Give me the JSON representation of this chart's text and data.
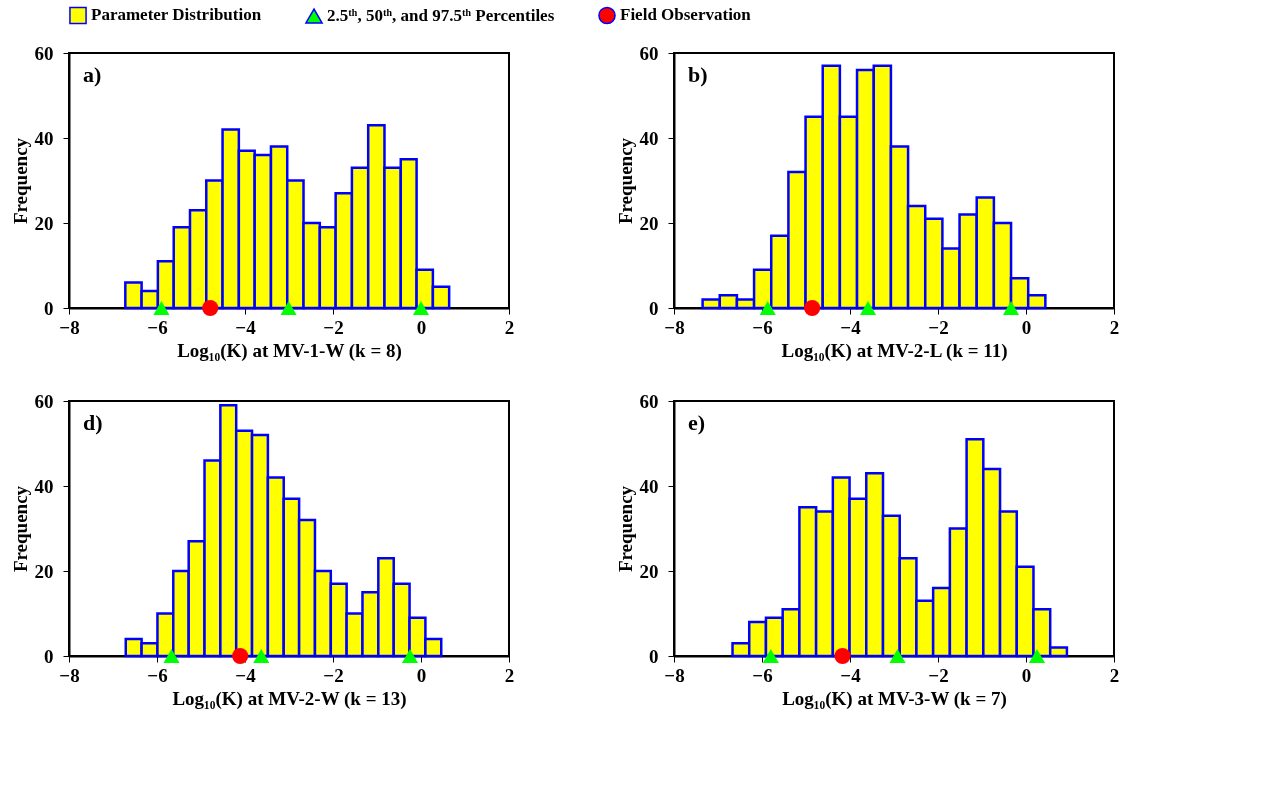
{
  "chart_data": [
    {
      "type": "histogram",
      "xlabel": "Log₁₀(K) at MV-1-W (k = 8)",
      "ylabel": "Frequency",
      "annotations": [
        "a)"
      ],
      "xlim": [
        -8,
        2
      ],
      "xticks": [
        -8,
        -6,
        -4,
        -2,
        0,
        2
      ],
      "ylim": [
        0,
        60
      ],
      "yticks": [
        0,
        20,
        40,
        60
      ],
      "legend": "top",
      "series": [
        {
          "name": "Parameter Distribution",
          "color": "#ffff00",
          "bins": [
            -6.72,
            -6.35,
            -5.98,
            -5.62,
            -5.25,
            -4.88,
            -4.51,
            -4.14,
            -3.78,
            -3.41,
            -3.04,
            -2.67,
            -2.3,
            -1.94,
            -1.57,
            -1.2,
            -0.83,
            -0.46,
            -0.1,
            0.27,
            0.64
          ],
          "values": [
            6,
            4,
            11,
            19,
            23,
            30,
            42,
            37,
            36,
            38,
            30,
            20,
            19,
            27,
            33,
            43,
            33,
            35,
            9,
            5
          ]
        },
        {
          "type": "scatter",
          "name": "2.5ᵗʰ, 50ᵗʰ, and 97.5ᵗʰ Percentiles",
          "color": "#00ff00",
          "marker": "triangle",
          "x": [
            -5.9,
            -3.01,
            0.0
          ],
          "values": [
            0,
            0,
            0
          ]
        },
        {
          "type": "scatter",
          "name": "Field Observation",
          "color": "#ff0000",
          "marker": "circle",
          "x": [
            -4.79
          ],
          "values": [
            0
          ]
        }
      ]
    },
    {
      "type": "histogram",
      "xlabel": "Log₁₀(K) at MV-2-L (k = 11)",
      "ylabel": "Frequency",
      "annotations": [
        "b)"
      ],
      "xlim": [
        -8,
        2
      ],
      "xticks": [
        -8,
        -6,
        -4,
        -2,
        0,
        2
      ],
      "ylim": [
        0,
        60
      ],
      "yticks": [
        0,
        20,
        40,
        60
      ],
      "series": [
        {
          "color": "#ffff00",
          "bins": [
            -7.35,
            -6.96,
            -6.57,
            -6.18,
            -5.79,
            -5.4,
            -5.01,
            -4.62,
            -4.23,
            -3.84,
            -3.46,
            -3.07,
            -2.68,
            -2.29,
            -1.9,
            -1.51,
            -1.12,
            -0.73,
            -0.34,
            0.05,
            0.44
          ],
          "values": [
            2,
            3,
            2,
            9,
            17,
            32,
            45,
            57,
            45,
            56,
            57,
            38,
            24,
            21,
            14,
            22,
            26,
            20,
            7,
            3
          ]
        },
        {
          "type": "scatter",
          "color": "#00ff00",
          "marker": "triangle",
          "x": [
            -5.87,
            -3.59,
            -0.34
          ],
          "values": [
            0,
            0,
            0
          ]
        },
        {
          "type": "scatter",
          "color": "#ff0000",
          "marker": "circle",
          "x": [
            -4.86
          ],
          "values": [
            0
          ]
        }
      ]
    },
    {
      "type": "histogram",
      "xlabel": "Log₁₀(K) at MV-2-W (k = 13)",
      "ylabel": "Frequency",
      "annotations": [
        "d)"
      ],
      "xlim": [
        -8,
        2
      ],
      "xticks": [
        -8,
        -6,
        -4,
        -2,
        0,
        2
      ],
      "ylim": [
        0,
        60
      ],
      "yticks": [
        0,
        20,
        40,
        60
      ],
      "series": [
        {
          "color": "#ffff00",
          "bins": [
            -6.71,
            -6.35,
            -5.99,
            -5.63,
            -5.28,
            -4.92,
            -4.56,
            -4.2,
            -3.84,
            -3.48,
            -3.12,
            -2.77,
            -2.41,
            -2.05,
            -1.69,
            -1.33,
            -0.97,
            -0.62,
            -0.26,
            0.1,
            0.46
          ],
          "values": [
            4,
            3,
            10,
            20,
            27,
            46,
            59,
            53,
            52,
            42,
            37,
            32,
            20,
            17,
            10,
            15,
            23,
            17,
            9,
            4
          ]
        },
        {
          "type": "scatter",
          "color": "#00ff00",
          "marker": "triangle",
          "x": [
            -5.67,
            -3.63,
            -0.25
          ],
          "values": [
            0,
            0,
            0
          ]
        },
        {
          "type": "scatter",
          "color": "#ff0000",
          "marker": "circle",
          "x": [
            -4.11
          ],
          "values": [
            0
          ]
        }
      ]
    },
    {
      "type": "histogram",
      "xlabel": "Log₁₀(K) at MV-3-W (k = 7)",
      "ylabel": "Frequency",
      "annotations": [
        "e)"
      ],
      "xlim": [
        -8,
        2
      ],
      "xticks": [
        -8,
        -6,
        -4,
        -2,
        0,
        2
      ],
      "ylim": [
        0,
        60
      ],
      "yticks": [
        0,
        20,
        40,
        60
      ],
      "series": [
        {
          "color": "#ffff00",
          "bins": [
            -6.67,
            -6.29,
            -5.91,
            -5.53,
            -5.15,
            -4.77,
            -4.39,
            -4.01,
            -3.63,
            -3.25,
            -2.87,
            -2.49,
            -2.11,
            -1.73,
            -1.35,
            -0.97,
            -0.59,
            -0.21,
            0.17,
            0.55,
            0.93
          ],
          "values": [
            3,
            8,
            9,
            11,
            35,
            34,
            42,
            37,
            43,
            33,
            23,
            13,
            16,
            30,
            51,
            44,
            34,
            21,
            11,
            2
          ]
        },
        {
          "type": "scatter",
          "color": "#00ff00",
          "marker": "triangle",
          "x": [
            -5.8,
            -2.92,
            0.25
          ],
          "values": [
            0,
            0,
            0
          ]
        },
        {
          "type": "scatter",
          "color": "#ff0000",
          "marker": "circle",
          "x": [
            -4.17
          ],
          "values": [
            0
          ]
        }
      ]
    }
  ]
}
